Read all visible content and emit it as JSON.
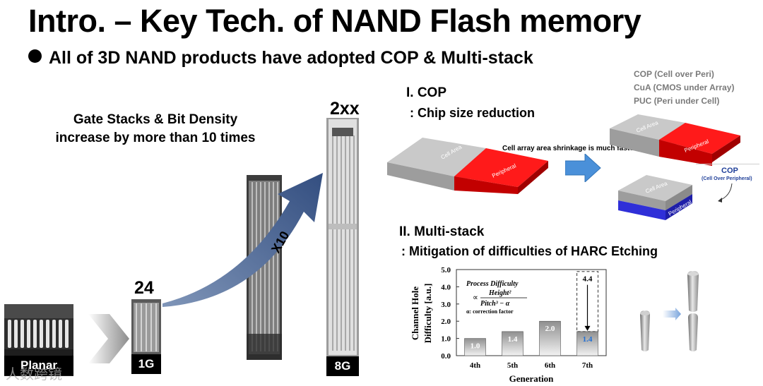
{
  "slide": {
    "title": "Intro. – Key Tech. of NAND Flash memory",
    "subtitle": "All of 3D NAND products have adopted COP & Multi-stack"
  },
  "left_panel": {
    "gate_text_line1": "Gate Stacks & Bit Density",
    "gate_text_line2": "increase by more than 10 times",
    "planar_label": "Planar",
    "count_24": "24",
    "label_1g": "1G",
    "count_2xx": "2xx",
    "label_8g": "8G",
    "multiplier": "X10",
    "watermark": "人数跨镜"
  },
  "cop": {
    "heading": "I. COP",
    "subheading": ":  Chip size reduction",
    "acronyms": [
      "COP (Cell over Peri)",
      "CuA (CMOS under Array)",
      "PUC (Peri under Cell)"
    ],
    "shrink_note": "Cell array area shrinkage is much faster",
    "cell_area": "Cell Area",
    "peripheral": "Peripheral",
    "cop_label": "COP",
    "cop_sub": "(Cell Over Peripheral)",
    "colors": {
      "peripheral": "#ff0000",
      "cell": "#b7b7b7",
      "peri_under": "#2f2fd8",
      "arrow": "#4a90d9"
    }
  },
  "multistack": {
    "heading": "II. Multi-stack",
    "subheading": ": Mitigation of difficulties of HARC Etching",
    "formula_title": "Process Difficulty",
    "formula_prop": "∝",
    "formula_num": "Height²",
    "formula_den": "Pitch³ − α",
    "formula_note": "α: correction factor"
  },
  "chart_data": {
    "type": "bar",
    "categories": [
      "4th",
      "5th",
      "6th",
      "7th"
    ],
    "values": [
      1.0,
      1.4,
      2.0,
      1.4
    ],
    "value_labels": [
      "1.0",
      "1.4",
      "2.0",
      "1.4"
    ],
    "projected": {
      "category": "7th",
      "value": 4.4,
      "label": "4.4"
    },
    "ylabel_line1": "Channel Hole",
    "ylabel_line2": "Difficulty [a.u.]",
    "xlabel": "Generation",
    "ylim": [
      0,
      5
    ],
    "yticks": [
      "0.0",
      "1.0",
      "2.0",
      "3.0",
      "4.0",
      "5.0"
    ],
    "ytick_values": [
      0,
      1,
      2,
      3,
      4,
      5
    ]
  }
}
